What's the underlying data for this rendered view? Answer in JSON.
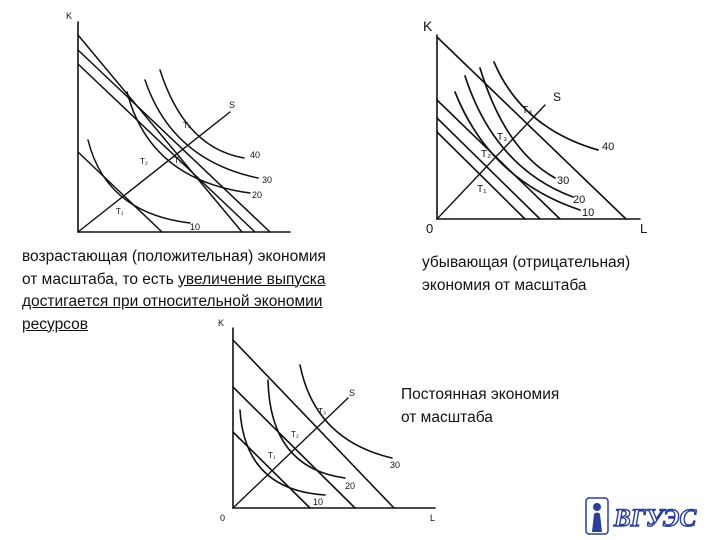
{
  "diagrams": {
    "increasing": {
      "axis_k": "K",
      "ray": "S",
      "points": [
        "T₁",
        "T₂",
        "T₃",
        "T₄"
      ],
      "isoquants": [
        "10",
        "20",
        "30",
        "40"
      ]
    },
    "decreasing": {
      "axis_k": "K",
      "axis_l": "L",
      "origin": "0",
      "ray": "S",
      "points": [
        "T₁",
        "T₂",
        "T₃",
        "T₄"
      ],
      "isoquants": [
        "10",
        "20",
        "30",
        "40"
      ]
    },
    "constant": {
      "axis_k": "K",
      "axis_l": "L",
      "origin": "0",
      "ray": "S",
      "points": [
        "T₁",
        "T₂",
        "T₃"
      ],
      "isoquants": [
        "10",
        "20",
        "30"
      ]
    }
  },
  "captions": {
    "increasing": {
      "line1": "возрастающая (положительная) экономия",
      "line2_plain": "от масштаба, то есть ",
      "line2_underlined": "увеличение выпуска",
      "line3_underlined": "достигается при относительной экономии",
      "line4_underlined": "ресурсов"
    },
    "decreasing": {
      "line1": "убывающая (отрицательная)",
      "line2": "экономия от масштаба"
    },
    "constant": {
      "line1": "Постоянная экономия",
      "line2": "от масштаба"
    }
  },
  "logo": {
    "text": "ВГУЭС",
    "colors": {
      "primary": "#2a3f9a"
    }
  }
}
